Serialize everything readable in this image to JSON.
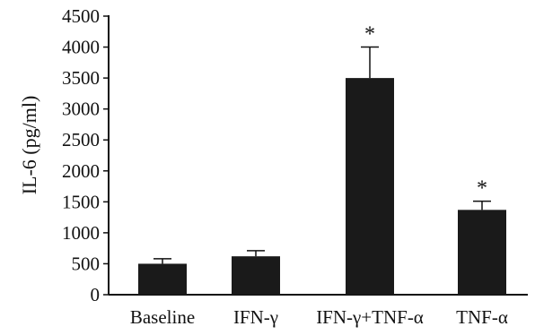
{
  "chart_data": {
    "type": "bar",
    "title": "",
    "xlabel": "",
    "ylabel": "IL-6 (pg/ml)",
    "ylim": [
      0,
      4500
    ],
    "yticks": [
      0,
      500,
      1000,
      1500,
      2000,
      2500,
      3000,
      3500,
      4000,
      4500
    ],
    "ytick_labels": [
      "0",
      "500",
      "1000",
      "1500",
      "2000",
      "2500",
      "3000",
      "3500",
      "4000",
      "4500"
    ],
    "categories": [
      "Baseline",
      "IFN-γ",
      "IFN-γ+TNF-α",
      "TNF-α"
    ],
    "values": [
      500,
      620,
      3500,
      1370
    ],
    "error_upper": [
      80,
      90,
      500,
      140
    ],
    "significance": [
      "",
      "",
      "*",
      "*"
    ],
    "bar_color": "#1a1a1a",
    "grid": false,
    "legend": "none"
  }
}
